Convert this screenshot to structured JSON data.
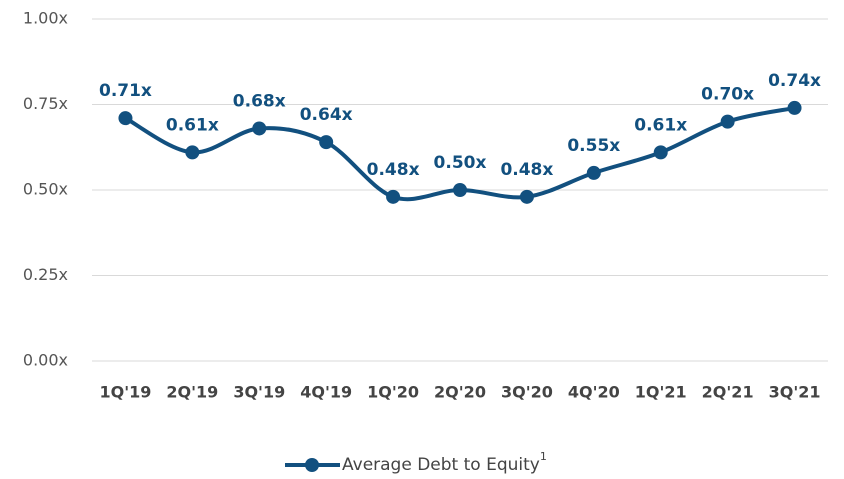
{
  "chart_data": {
    "type": "line",
    "categories": [
      "1Q'19",
      "2Q'19",
      "3Q'19",
      "4Q'19",
      "1Q'20",
      "2Q'20",
      "3Q'20",
      "4Q'20",
      "1Q'21",
      "2Q'21",
      "3Q'21"
    ],
    "series": [
      {
        "name": "Average Debt to Equity",
        "color": "#12507f",
        "values": [
          0.71,
          0.61,
          0.68,
          0.64,
          0.48,
          0.5,
          0.48,
          0.55,
          0.61,
          0.7,
          0.74
        ],
        "value_labels": [
          "0.71x",
          "0.61x",
          "0.68x",
          "0.64x",
          "0.48x",
          "0.50x",
          "0.48x",
          "0.55x",
          "0.61x",
          "0.70x",
          "0.74x"
        ]
      }
    ],
    "legend_footnote": "1",
    "ylim": [
      0,
      1
    ],
    "yticks": [
      {
        "value": 0,
        "label": "0.00x"
      },
      {
        "value": 0.25,
        "label": "0.25x"
      },
      {
        "value": 0.5,
        "label": "0.50x"
      },
      {
        "value": 0.75,
        "label": "0.75x"
      },
      {
        "value": 1,
        "label": "1.00x"
      }
    ],
    "grid": true,
    "legend": "bottom"
  }
}
